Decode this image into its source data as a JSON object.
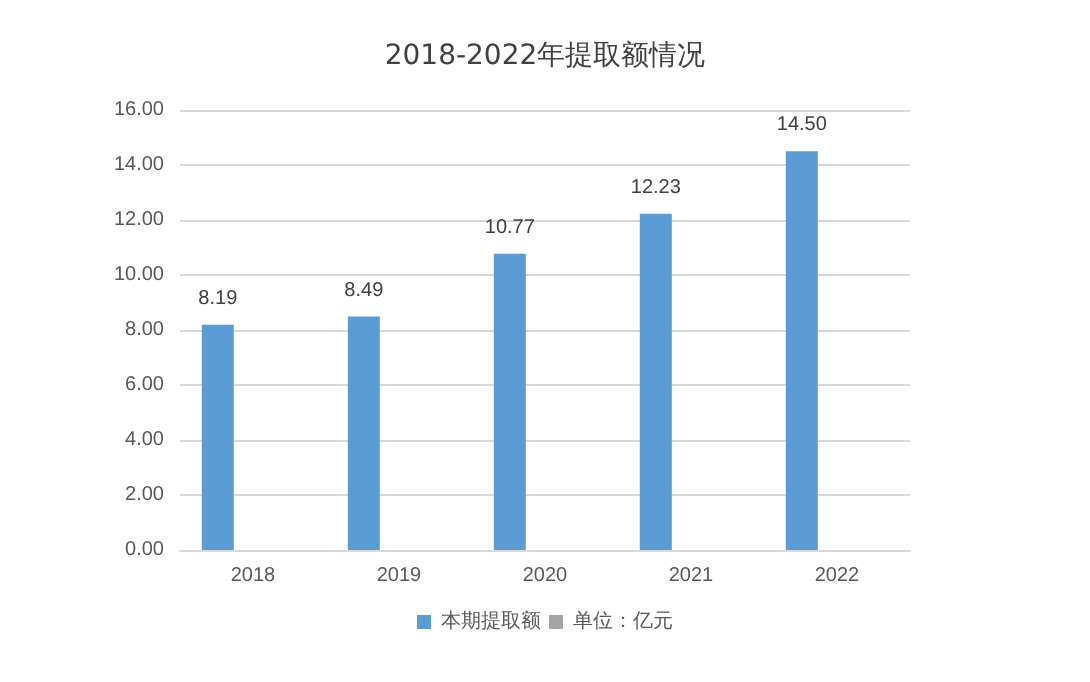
{
  "chart_data": {
    "type": "bar",
    "title": "2018-2022年提取额情况",
    "categories": [
      "2018",
      "2019",
      "2020",
      "2021",
      "2022"
    ],
    "series": [
      {
        "name": "本期提取额",
        "color": "#5b9bd5",
        "values": [
          8.19,
          8.49,
          10.77,
          12.23,
          14.5
        ],
        "value_labels": [
          "8.19",
          "8.49",
          "10.77",
          "12.23",
          "14.50"
        ]
      },
      {
        "name": "单位：亿元",
        "color": "#a5a5a5",
        "values": [
          null,
          null,
          null,
          null,
          null
        ]
      }
    ],
    "ylim": [
      0,
      16
    ],
    "yticks": [
      {
        "value": 0,
        "label": "0.00"
      },
      {
        "value": 2,
        "label": "2.00"
      },
      {
        "value": 4,
        "label": "4.00"
      },
      {
        "value": 6,
        "label": "6.00"
      },
      {
        "value": 8,
        "label": "8.00"
      },
      {
        "value": 10,
        "label": "10.00"
      },
      {
        "value": 12,
        "label": "12.00"
      },
      {
        "value": 14,
        "label": "14.00"
      },
      {
        "value": 16,
        "label": "16.00"
      }
    ],
    "grid": "y",
    "legend": "bottom"
  }
}
